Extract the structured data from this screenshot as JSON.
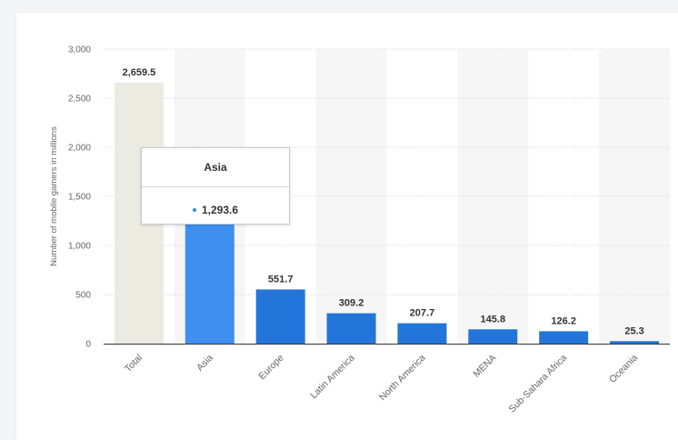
{
  "chart_data": {
    "type": "bar",
    "categories": [
      "Total",
      "Asia",
      "Europe",
      "Latin America",
      "North America",
      "MENA",
      "Sub-Sahara Africa",
      "Oceania"
    ],
    "values": [
      2659.5,
      1293.6,
      551.7,
      309.2,
      207.7,
      145.8,
      126.2,
      25.3
    ],
    "value_labels": [
      "2,659.5",
      "1,293.6",
      "551.7",
      "309.2",
      "207.7",
      "145.8",
      "126.2",
      "25.3"
    ],
    "ylabel": "Number of mobile gamers in millions",
    "ylim": [
      0,
      3000
    ],
    "yticks": [
      0,
      500,
      1000,
      1500,
      2000,
      2500,
      3000
    ],
    "ytick_labels": [
      "0",
      "500",
      "1,000",
      "1,500",
      "2,000",
      "2,500",
      "3,000"
    ],
    "grid": true,
    "colors": {
      "total": "#ecebe2",
      "highlight": "#3f8ff0",
      "bar": "#2375d9",
      "band": "#f6f6f6",
      "label": "#333333",
      "axis_text": "#666666"
    }
  },
  "tooltip": {
    "title": "Asia",
    "value": "1,293.6",
    "dot_color": "#3c89ea"
  }
}
